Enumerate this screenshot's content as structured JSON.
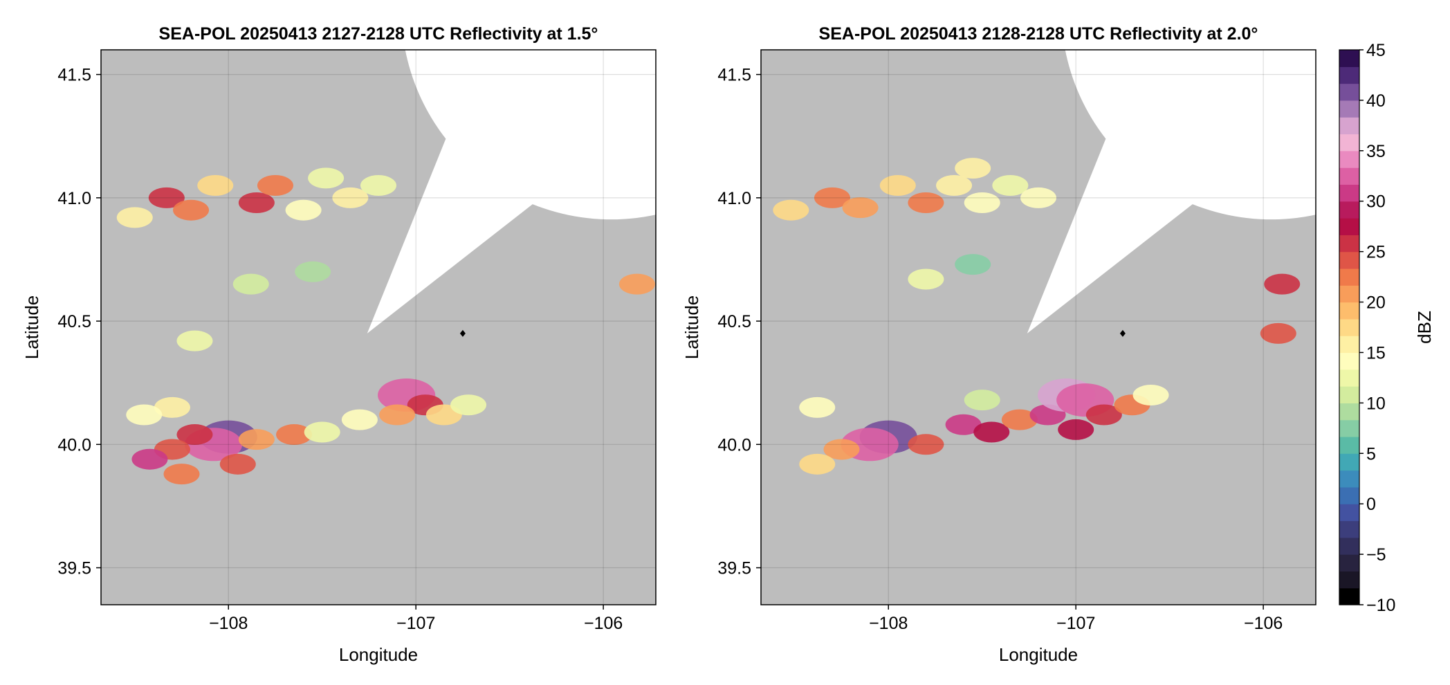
{
  "chart_data": [
    {
      "type": "heatmap",
      "title": "SEA-POL 20250413 2127-2128 UTC Reflectivity at 1.5°",
      "xlabel": "Longitude",
      "ylabel": "Latitude",
      "xlim": [
        -108.68,
        -105.72
      ],
      "ylim": [
        39.35,
        41.6
      ],
      "xticks": [
        -108,
        -107,
        -106
      ],
      "xtick_labels": [
        "−108",
        "−107",
        "−106"
      ],
      "yticks": [
        39.5,
        40.0,
        40.5,
        41.0,
        41.5
      ],
      "ytick_labels": [
        "39.5",
        "40.0",
        "40.5",
        "41.0",
        "41.5"
      ],
      "grid": true,
      "radar": {
        "lon": -106.75,
        "lat": 40.45
      },
      "coverage": {
        "center_lon": -107.26,
        "center_lat": 40.45,
        "range_deg": 1.12,
        "blocked_sector_deg": [
          38,
          68
        ]
      },
      "cells": [
        {
          "lon": -108.0,
          "lat": 40.03,
          "dbz": 40
        },
        {
          "lon": -108.08,
          "lat": 40.0,
          "dbz": 32
        },
        {
          "lon": -108.18,
          "lat": 40.04,
          "dbz": 26
        },
        {
          "lon": -108.3,
          "lat": 39.98,
          "dbz": 24
        },
        {
          "lon": -108.42,
          "lat": 39.94,
          "dbz": 30
        },
        {
          "lon": -108.25,
          "lat": 39.88,
          "dbz": 22
        },
        {
          "lon": -107.95,
          "lat": 39.92,
          "dbz": 24
        },
        {
          "lon": -107.85,
          "lat": 40.02,
          "dbz": 21
        },
        {
          "lon": -108.3,
          "lat": 40.15,
          "dbz": 16
        },
        {
          "lon": -108.45,
          "lat": 40.12,
          "dbz": 14
        },
        {
          "lon": -107.65,
          "lat": 40.04,
          "dbz": 22
        },
        {
          "lon": -107.5,
          "lat": 40.05,
          "dbz": 12
        },
        {
          "lon": -107.3,
          "lat": 40.1,
          "dbz": 14
        },
        {
          "lon": -107.05,
          "lat": 40.2,
          "dbz": 32
        },
        {
          "lon": -106.95,
          "lat": 40.16,
          "dbz": 25
        },
        {
          "lon": -106.85,
          "lat": 40.12,
          "dbz": 18
        },
        {
          "lon": -106.72,
          "lat": 40.16,
          "dbz": 12
        },
        {
          "lon": -107.1,
          "lat": 40.12,
          "dbz": 20
        },
        {
          "lon": -108.33,
          "lat": 41.0,
          "dbz": 26
        },
        {
          "lon": -108.2,
          "lat": 40.95,
          "dbz": 22
        },
        {
          "lon": -108.07,
          "lat": 41.05,
          "dbz": 18
        },
        {
          "lon": -107.85,
          "lat": 40.98,
          "dbz": 26
        },
        {
          "lon": -107.75,
          "lat": 41.05,
          "dbz": 22
        },
        {
          "lon": -107.6,
          "lat": 40.95,
          "dbz": 14
        },
        {
          "lon": -107.48,
          "lat": 41.08,
          "dbz": 13
        },
        {
          "lon": -107.35,
          "lat": 41.0,
          "dbz": 15
        },
        {
          "lon": -107.2,
          "lat": 41.05,
          "dbz": 12
        },
        {
          "lon": -108.5,
          "lat": 40.92,
          "dbz": 16
        },
        {
          "lon": -107.88,
          "lat": 40.65,
          "dbz": 11
        },
        {
          "lon": -107.55,
          "lat": 40.7,
          "dbz": 9
        },
        {
          "lon": -108.18,
          "lat": 40.42,
          "dbz": 13
        },
        {
          "lon": -105.82,
          "lat": 40.65,
          "dbz": 20
        }
      ]
    },
    {
      "type": "heatmap",
      "title": "SEA-POL 20250413 2128-2128 UTC Reflectivity at 2.0°",
      "xlabel": "Longitude",
      "ylabel": "Latitude",
      "xlim": [
        -108.68,
        -105.72
      ],
      "ylim": [
        39.35,
        41.6
      ],
      "xticks": [
        -108,
        -107,
        -106
      ],
      "xtick_labels": [
        "−108",
        "−107",
        "−106"
      ],
      "yticks": [
        39.5,
        40.0,
        40.5,
        41.0,
        41.5
      ],
      "ytick_labels": [
        "39.5",
        "40.0",
        "40.5",
        "41.0",
        "41.5"
      ],
      "grid": true,
      "radar": {
        "lon": -106.75,
        "lat": 40.45
      },
      "coverage": {
        "center_lon": -107.26,
        "center_lat": 40.45,
        "range_deg": 1.12,
        "blocked_sector_deg": [
          38,
          68
        ]
      },
      "cells": [
        {
          "lon": -108.0,
          "lat": 40.03,
          "dbz": 41
        },
        {
          "lon": -108.1,
          "lat": 40.0,
          "dbz": 32
        },
        {
          "lon": -108.25,
          "lat": 39.98,
          "dbz": 20
        },
        {
          "lon": -108.38,
          "lat": 39.92,
          "dbz": 17
        },
        {
          "lon": -107.8,
          "lat": 40.0,
          "dbz": 24
        },
        {
          "lon": -107.6,
          "lat": 40.08,
          "dbz": 30
        },
        {
          "lon": -107.45,
          "lat": 40.05,
          "dbz": 28
        },
        {
          "lon": -107.3,
          "lat": 40.1,
          "dbz": 22
        },
        {
          "lon": -107.15,
          "lat": 40.12,
          "dbz": 30
        },
        {
          "lon": -107.05,
          "lat": 40.2,
          "dbz": 38
        },
        {
          "lon": -106.95,
          "lat": 40.18,
          "dbz": 32
        },
        {
          "lon": -106.85,
          "lat": 40.12,
          "dbz": 26
        },
        {
          "lon": -106.7,
          "lat": 40.16,
          "dbz": 22
        },
        {
          "lon": -106.6,
          "lat": 40.2,
          "dbz": 14
        },
        {
          "lon": -107.0,
          "lat": 40.06,
          "dbz": 27
        },
        {
          "lon": -107.5,
          "lat": 40.18,
          "dbz": 10
        },
        {
          "lon": -108.38,
          "lat": 40.15,
          "dbz": 14
        },
        {
          "lon": -108.3,
          "lat": 41.0,
          "dbz": 22
        },
        {
          "lon": -108.15,
          "lat": 40.96,
          "dbz": 20
        },
        {
          "lon": -107.95,
          "lat": 41.05,
          "dbz": 18
        },
        {
          "lon": -107.8,
          "lat": 40.98,
          "dbz": 22
        },
        {
          "lon": -107.65,
          "lat": 41.05,
          "dbz": 16
        },
        {
          "lon": -107.5,
          "lat": 40.98,
          "dbz": 14
        },
        {
          "lon": -107.35,
          "lat": 41.05,
          "dbz": 12
        },
        {
          "lon": -107.2,
          "lat": 41.0,
          "dbz": 14
        },
        {
          "lon": -107.55,
          "lat": 41.12,
          "dbz": 15
        },
        {
          "lon": -108.52,
          "lat": 40.95,
          "dbz": 18
        },
        {
          "lon": -107.8,
          "lat": 40.67,
          "dbz": 12
        },
        {
          "lon": -107.55,
          "lat": 40.73,
          "dbz": 8
        },
        {
          "lon": -105.9,
          "lat": 40.65,
          "dbz": 26
        },
        {
          "lon": -105.92,
          "lat": 40.45,
          "dbz": 24
        }
      ]
    }
  ],
  "colorbar": {
    "label": "dBZ",
    "min": -10,
    "max": 45,
    "ticks": [
      -10,
      -5,
      0,
      5,
      10,
      15,
      20,
      25,
      30,
      35,
      40,
      45
    ],
    "tick_labels": [
      "−10",
      "−5",
      "0",
      "5",
      "10",
      "15",
      "20",
      "25",
      "30",
      "35",
      "40",
      "45"
    ],
    "colors": [
      "#000000",
      "#1a1626",
      "#28233f",
      "#322f5c",
      "#3c3e7c",
      "#4352a1",
      "#3b6fb3",
      "#3c8cbc",
      "#41a8b5",
      "#5abba6",
      "#86cda5",
      "#aedc9f",
      "#d3ec9e",
      "#eef7a8",
      "#fffdbd",
      "#fef0a4",
      "#fed986",
      "#fdbd6c",
      "#f89d5a",
      "#f07a4a",
      "#df5547",
      "#cb3245",
      "#b50f46",
      "#b81b5d",
      "#cb3a86",
      "#dd60a4",
      "#ea8ac0",
      "#f2b4d4",
      "#d7a3cf",
      "#a57ab6",
      "#764f9a",
      "#4d2a78",
      "#2e0f52"
    ],
    "missing_color": "#bdbdbd"
  }
}
